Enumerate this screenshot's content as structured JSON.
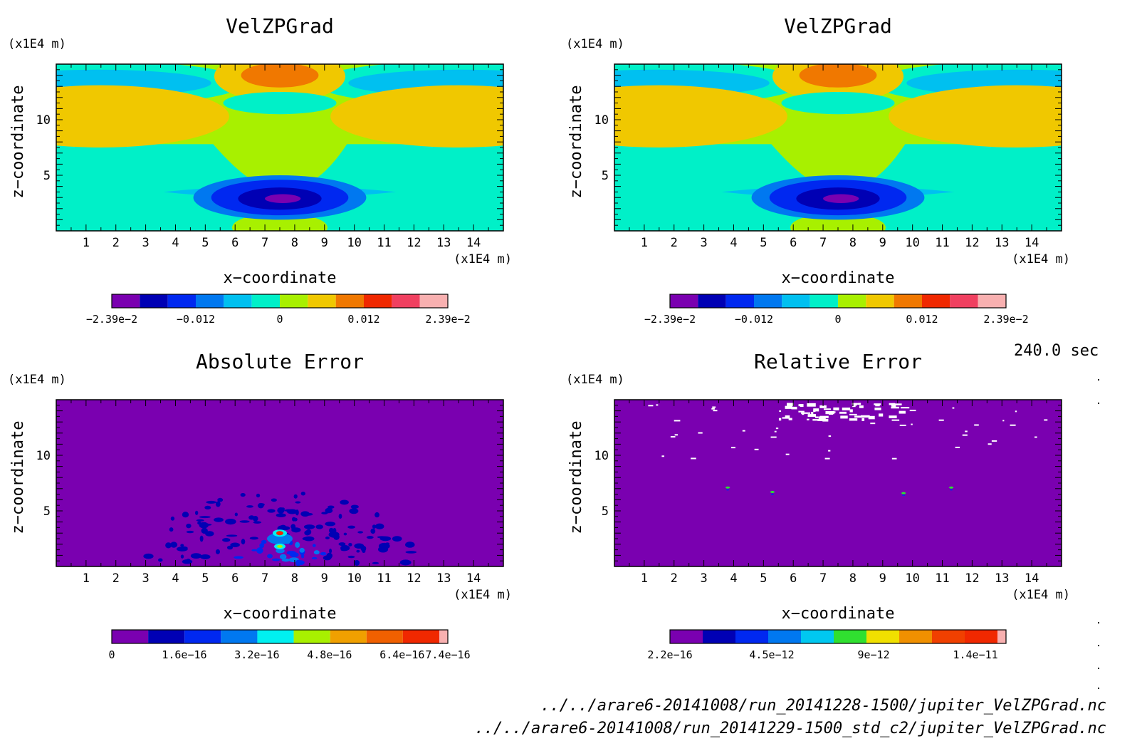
{
  "time_label": "240.0 sec",
  "footer": {
    "file1": "../../arare6-20141008/run_20141228-1500/jupiter_VelZPGrad.nc",
    "file2": "../../arare6-20141008/run_20141229-1500_std_c2/jupiter_VelZPGrad.nc"
  },
  "chart_data": [
    {
      "type": "heatmap",
      "title": "VelZPGrad",
      "xlabel": "x−coordinate",
      "ylabel": "z−coordinate",
      "x_unit": "(x1E4 m)",
      "y_unit": "(x1E4 m)",
      "xlim": [
        0,
        15
      ],
      "ylim": [
        0,
        15
      ],
      "xticks": [
        "1",
        "2",
        "3",
        "4",
        "5",
        "6",
        "7",
        "8",
        "9",
        "10",
        "11",
        "12",
        "13",
        "14"
      ],
      "yticks": [
        "5",
        "10"
      ],
      "colorbar": {
        "levels": 11,
        "colors": [
          "#7a00b0",
          "#0000b4",
          "#0028f0",
          "#0078f0",
          "#00c0f0",
          "#00f0c8",
          "#a8f000",
          "#f0c800",
          "#f07800",
          "#f02800",
          "#f04060",
          "#f8b0b0"
        ],
        "tick_labels": [
          "−2.39e−2",
          "−0.012",
          "0",
          "0.012",
          "2.39e−2"
        ],
        "tick_positions": [
          0,
          0.25,
          0.5,
          0.75,
          1.0
        ]
      }
    },
    {
      "type": "heatmap",
      "title": "VelZPGrad",
      "xlabel": "x−coordinate",
      "ylabel": "z−coordinate",
      "x_unit": "(x1E4 m)",
      "y_unit": "(x1E4 m)",
      "xlim": [
        0,
        15
      ],
      "ylim": [
        0,
        15
      ],
      "xticks": [
        "1",
        "2",
        "3",
        "4",
        "5",
        "6",
        "7",
        "8",
        "9",
        "10",
        "11",
        "12",
        "13",
        "14"
      ],
      "yticks": [
        "5",
        "10"
      ],
      "colorbar": {
        "levels": 11,
        "colors": [
          "#7a00b0",
          "#0000b4",
          "#0028f0",
          "#0078f0",
          "#00c0f0",
          "#00f0c8",
          "#a8f000",
          "#f0c800",
          "#f07800",
          "#f02800",
          "#f04060",
          "#f8b0b0"
        ],
        "tick_labels": [
          "−2.39e−2",
          "−0.012",
          "0",
          "0.012",
          "2.39e−2"
        ],
        "tick_positions": [
          0,
          0.25,
          0.5,
          0.75,
          1.0
        ]
      }
    },
    {
      "type": "heatmap",
      "title": "Absolute Error",
      "xlabel": "x−coordinate",
      "ylabel": "z−coordinate",
      "x_unit": "(x1E4 m)",
      "y_unit": "(x1E4 m)",
      "xlim": [
        0,
        15
      ],
      "ylim": [
        0,
        15
      ],
      "xticks": [
        "1",
        "2",
        "3",
        "4",
        "5",
        "6",
        "7",
        "8",
        "9",
        "10",
        "11",
        "12",
        "13",
        "14"
      ],
      "yticks": [
        "5",
        "10"
      ],
      "colorbar": {
        "levels": 10,
        "colors": [
          "#7a00b0",
          "#0000b4",
          "#0028f0",
          "#0078f0",
          "#00f0f0",
          "#a8f000",
          "#f0a000",
          "#f06000",
          "#f02800",
          "#f8b0b0"
        ],
        "tick_labels": [
          "0",
          "1.6e−16",
          "3.2e−16",
          "4.8e−16",
          "6.4e−16",
          "7.4e−16"
        ],
        "tick_positions": [
          0,
          0.216,
          0.432,
          0.648,
          0.864,
          1.0
        ]
      }
    },
    {
      "type": "heatmap",
      "title": "Relative Error",
      "xlabel": "x−coordinate",
      "ylabel": "z−coordinate",
      "x_unit": "(x1E4 m)",
      "y_unit": "(x1E4 m)",
      "xlim": [
        0,
        15
      ],
      "ylim": [
        0,
        15
      ],
      "xticks": [
        "1",
        "2",
        "3",
        "4",
        "5",
        "6",
        "7",
        "8",
        "9",
        "10",
        "11",
        "12",
        "13",
        "14"
      ],
      "yticks": [
        "5",
        "10"
      ],
      "colorbar": {
        "levels": 11,
        "colors": [
          "#7a00b0",
          "#0000b4",
          "#0028f0",
          "#0078f0",
          "#00c8f0",
          "#30e030",
          "#f0e000",
          "#f09000",
          "#f04000",
          "#f02800",
          "#f8b0b0"
        ],
        "tick_labels": [
          "2.2e−16",
          "4.5e−12",
          "9e−12",
          "1.4e−11"
        ],
        "tick_positions": [
          0.0,
          0.303,
          0.606,
          0.909
        ]
      }
    }
  ]
}
